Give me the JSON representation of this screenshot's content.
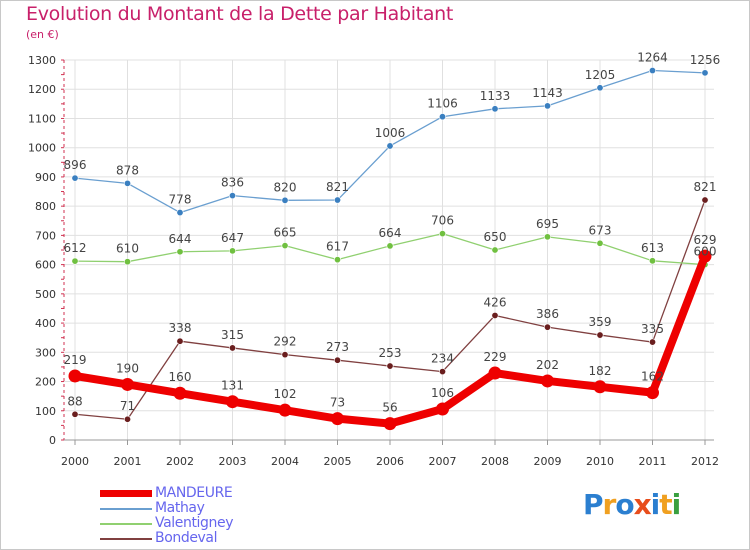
{
  "header": {
    "title": "Evolution du Montant de la Dette par Habitant",
    "unit": "(en €)"
  },
  "logo": {
    "text": "Proxiti",
    "letters": [
      "P",
      "r",
      "o",
      "x",
      "i",
      "t",
      "i"
    ],
    "colors": [
      "#2b7fd0",
      "#f0a020",
      "#2b7fd0",
      "#e84d1c",
      "#2b7fd0",
      "#f0a020",
      "#3aa040"
    ]
  },
  "colors": {
    "title": "#c8206a",
    "legend_text": "#6666ee",
    "grid": "#e0e0e0",
    "axis": "#999999"
  },
  "chart_data": {
    "type": "line",
    "categories": [
      "2000",
      "2001",
      "2002",
      "2003",
      "2004",
      "2005",
      "2006",
      "2007",
      "2008",
      "2009",
      "2010",
      "2011",
      "2012"
    ],
    "ylim": [
      0,
      1300
    ],
    "yticks": [
      0,
      100,
      200,
      300,
      400,
      500,
      600,
      700,
      800,
      900,
      1000,
      1100,
      1200,
      1300
    ],
    "grid": true,
    "legend": "bottom-left",
    "series": [
      {
        "name": "MANDEURE",
        "color": "#ee0000",
        "values": [
          219,
          190,
          160,
          131,
          102,
          73,
          56,
          106,
          229,
          202,
          182,
          162,
          629
        ]
      },
      {
        "name": "Mathay",
        "color": "#6a9fd0",
        "marker": "#3a7fc0",
        "values": [
          896,
          878,
          778,
          836,
          820,
          821,
          1006,
          1106,
          1133,
          1143,
          1205,
          1264,
          1256
        ]
      },
      {
        "name": "Valentigney",
        "color": "#90d070",
        "marker": "#70c040",
        "values": [
          612,
          610,
          644,
          647,
          665,
          617,
          664,
          706,
          650,
          695,
          673,
          613,
          600
        ]
      },
      {
        "name": "Bondeval",
        "color": "#804040",
        "marker": "#6a1e1e",
        "values": [
          88,
          71,
          338,
          315,
          292,
          273,
          253,
          234,
          426,
          386,
          359,
          335,
          821
        ]
      }
    ]
  }
}
